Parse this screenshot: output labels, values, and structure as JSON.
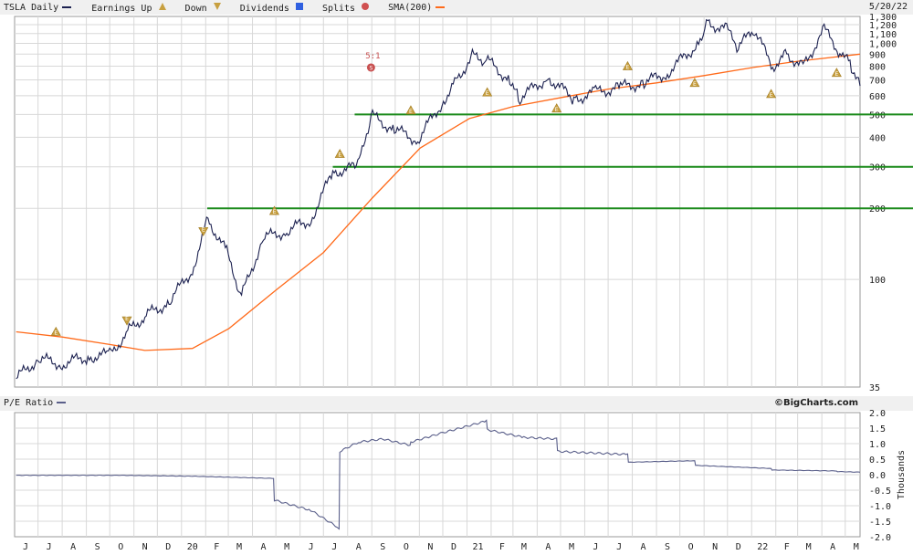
{
  "header": {
    "symbol_label": "TSLA Daily",
    "legend": [
      {
        "label": "Earnings Up",
        "icon": "triangle-up-icon",
        "color": "#c8a040"
      },
      {
        "label": "Down",
        "icon": "triangle-down-icon",
        "color": "#c8a040"
      },
      {
        "label": "Dividends",
        "icon": "dividend-icon",
        "color": "#3060e0"
      },
      {
        "label": "Splits",
        "icon": "split-icon",
        "color": "#d05050"
      },
      {
        "label": "SMA(200)",
        "icon": "line-swatch-icon",
        "color": "#ff6a1a"
      }
    ],
    "date": "5/20/22"
  },
  "pe_panel": {
    "label": "P/E Ratio",
    "brand": "©BigCharts.com"
  },
  "split_annotation": "5:1",
  "earnings_marker": "E",
  "split_marker": "S",
  "chart_data": [
    {
      "type": "line",
      "series": [
        {
          "color": "#1c2150",
          "x": [
            "2019-06-03",
            "2019-07-01",
            "2019-08-01",
            "2019-09-03",
            "2019-10-01",
            "2019-10-24",
            "2019-11-15",
            "2019-12-16",
            "2020-01-15",
            "2020-02-04",
            "2020-02-28",
            "2020-03-18",
            "2020-04-15",
            "2020-05-15",
            "2020-06-15",
            "2020-07-13",
            "2020-08-14",
            "2020-08-31",
            "2020-09-30",
            "2020-10-30",
            "2020-11-30",
            "2020-12-18",
            "2021-01-08",
            "2021-01-26",
            "2021-02-25",
            "2021-03-08",
            "2021-04-15",
            "2021-05-18",
            "2021-06-15",
            "2021-07-15",
            "2021-08-16",
            "2021-09-15",
            "2021-10-25",
            "2021-11-04",
            "2021-11-30",
            "2021-12-15",
            "2022-01-03",
            "2022-01-28",
            "2022-02-15",
            "2022-03-08",
            "2022-04-04",
            "2022-04-26",
            "2022-05-09",
            "2022-05-20"
          ],
          "y": [
            38,
            46,
            44,
            47,
            48,
            60,
            70,
            80,
            110,
            180,
            130,
            85,
            150,
            160,
            180,
            285,
            300,
            495,
            430,
            390,
            560,
            700,
            880,
            850,
            700,
            580,
            720,
            580,
            620,
            650,
            680,
            750,
            1000,
            1230,
            1140,
            950,
            1150,
            800,
            900,
            800,
            1140,
            900,
            800,
            660
          ]
        }
      ],
      "sma200": {
        "name": "SMA(200)",
        "color": "#ff6a1a",
        "x": [
          "2019-06-03",
          "2019-08-01",
          "2019-10-01",
          "2019-11-15",
          "2020-01-15",
          "2020-03-02",
          "2020-05-01",
          "2020-07-01",
          "2020-09-01",
          "2020-11-02",
          "2021-01-04",
          "2021-03-01",
          "2021-05-03",
          "2021-07-01",
          "2021-09-01",
          "2021-11-01",
          "2022-01-03",
          "2022-03-01",
          "2022-05-20"
        ],
        "y": [
          60,
          57,
          53,
          50,
          51,
          62,
          90,
          130,
          220,
          360,
          480,
          540,
          590,
          640,
          680,
          730,
          790,
          840,
          900
        ]
      },
      "earnings": [
        {
          "date": "2019-07-24",
          "dir": "up",
          "price": 60
        },
        {
          "date": "2019-10-23",
          "dir": "down",
          "price": 67
        },
        {
          "date": "2020-01-29",
          "dir": "down",
          "price": 160
        },
        {
          "date": "2020-04-29",
          "dir": "up",
          "price": 195
        },
        {
          "date": "2020-07-22",
          "dir": "up",
          "price": 340
        },
        {
          "date": "2020-10-21",
          "dir": "up",
          "price": 520
        },
        {
          "date": "2021-01-27",
          "dir": "up",
          "price": 620
        },
        {
          "date": "2021-04-26",
          "dir": "up",
          "price": 530
        },
        {
          "date": "2021-07-26",
          "dir": "up",
          "price": 800
        },
        {
          "date": "2021-10-20",
          "dir": "up",
          "price": 680
        },
        {
          "date": "2022-01-26",
          "dir": "up",
          "price": 610
        },
        {
          "date": "2022-04-20",
          "dir": "up",
          "price": 750
        }
      ],
      "split": {
        "date": "2020-08-31",
        "ratio": "5:1",
        "price": 790
      },
      "support_lines": [
        {
          "price": 500,
          "from": "2020-08-10",
          "color": "#1a8a1a"
        },
        {
          "price": 300,
          "from": "2020-07-13",
          "color": "#1a8a1a"
        },
        {
          "price": 200,
          "from": "2020-02-03",
          "color": "#1a8a1a"
        }
      ],
      "y_scale": "log",
      "ylim": [
        35,
        1300
      ],
      "yticks": [
        35,
        100,
        200,
        300,
        400,
        500,
        600,
        700,
        800,
        900,
        1000,
        1100,
        1200,
        1300
      ],
      "ytick_labels": [
        "35",
        "100",
        "200",
        "300",
        "400",
        "500",
        "600",
        "700",
        "800",
        "900",
        "1,000",
        "1,100",
        "1,200",
        "1,300"
      ],
      "grid": true
    },
    {
      "type": "line",
      "series": [
        {
          "color": "#5a5f8a",
          "x": [
            "2019-06-03",
            "2019-10-15",
            "2020-01-15",
            "2020-04-28",
            "2020-04-29",
            "2020-06-15",
            "2020-07-21",
            "2020-07-22",
            "2020-08-15",
            "2020-09-15",
            "2020-10-20",
            "2020-10-21",
            "2020-12-01",
            "2021-01-26",
            "2021-01-27",
            "2021-03-15",
            "2021-04-26",
            "2021-04-27",
            "2021-07-26",
            "2021-07-27",
            "2021-10-20",
            "2021-10-21",
            "2022-01-26",
            "2022-01-27",
            "2022-04-20",
            "2022-04-21",
            "2022-05-20"
          ],
          "y": [
            -0.02,
            -0.02,
            -0.05,
            -0.12,
            -0.82,
            -1.15,
            -1.72,
            0.75,
            1.05,
            1.15,
            0.95,
            1.05,
            1.35,
            1.73,
            1.45,
            1.2,
            1.15,
            0.75,
            0.65,
            0.4,
            0.45,
            0.3,
            0.2,
            0.15,
            0.12,
            0.1,
            0.08
          ]
        }
      ],
      "y_scale": "linear",
      "ylim": [
        -2.0,
        2.0
      ],
      "yticks": [
        -2.0,
        -1.5,
        -1.0,
        -0.5,
        0.0,
        0.5,
        1.0,
        1.5,
        2.0
      ],
      "ytick_labels": [
        "-2.0",
        "-1.5",
        "-1.0",
        "-0.5",
        "0.0",
        "0.5",
        "1.0",
        "1.5",
        "2.0"
      ],
      "ylabel": "Thousands",
      "grid": true
    }
  ],
  "x_axis": {
    "start": "2019-06-01",
    "end": "2022-05-20",
    "months": [
      {
        "label": "J",
        "date": "2019-06-01"
      },
      {
        "label": "J",
        "date": "2019-07-01"
      },
      {
        "label": "A",
        "date": "2019-08-01"
      },
      {
        "label": "S",
        "date": "2019-09-01"
      },
      {
        "label": "O",
        "date": "2019-10-01"
      },
      {
        "label": "N",
        "date": "2019-11-01"
      },
      {
        "label": "D",
        "date": "2019-12-01"
      },
      {
        "label": "20",
        "date": "2020-01-01"
      },
      {
        "label": "F",
        "date": "2020-02-01"
      },
      {
        "label": "M",
        "date": "2020-03-01"
      },
      {
        "label": "A",
        "date": "2020-04-01"
      },
      {
        "label": "M",
        "date": "2020-05-01"
      },
      {
        "label": "J",
        "date": "2020-06-01"
      },
      {
        "label": "J",
        "date": "2020-07-01"
      },
      {
        "label": "A",
        "date": "2020-08-01"
      },
      {
        "label": "S",
        "date": "2020-09-01"
      },
      {
        "label": "O",
        "date": "2020-10-01"
      },
      {
        "label": "N",
        "date": "2020-11-01"
      },
      {
        "label": "D",
        "date": "2020-12-01"
      },
      {
        "label": "21",
        "date": "2021-01-01"
      },
      {
        "label": "F",
        "date": "2021-02-01"
      },
      {
        "label": "M",
        "date": "2021-03-01"
      },
      {
        "label": "A",
        "date": "2021-04-01"
      },
      {
        "label": "M",
        "date": "2021-05-01"
      },
      {
        "label": "J",
        "date": "2021-06-01"
      },
      {
        "label": "J",
        "date": "2021-07-01"
      },
      {
        "label": "A",
        "date": "2021-08-01"
      },
      {
        "label": "S",
        "date": "2021-09-01"
      },
      {
        "label": "O",
        "date": "2021-10-01"
      },
      {
        "label": "N",
        "date": "2021-11-01"
      },
      {
        "label": "D",
        "date": "2021-12-01"
      },
      {
        "label": "22",
        "date": "2022-01-01"
      },
      {
        "label": "F",
        "date": "2022-02-01"
      },
      {
        "label": "M",
        "date": "2022-03-01"
      },
      {
        "label": "A",
        "date": "2022-04-01"
      },
      {
        "label": "M",
        "date": "2022-05-01"
      }
    ]
  }
}
